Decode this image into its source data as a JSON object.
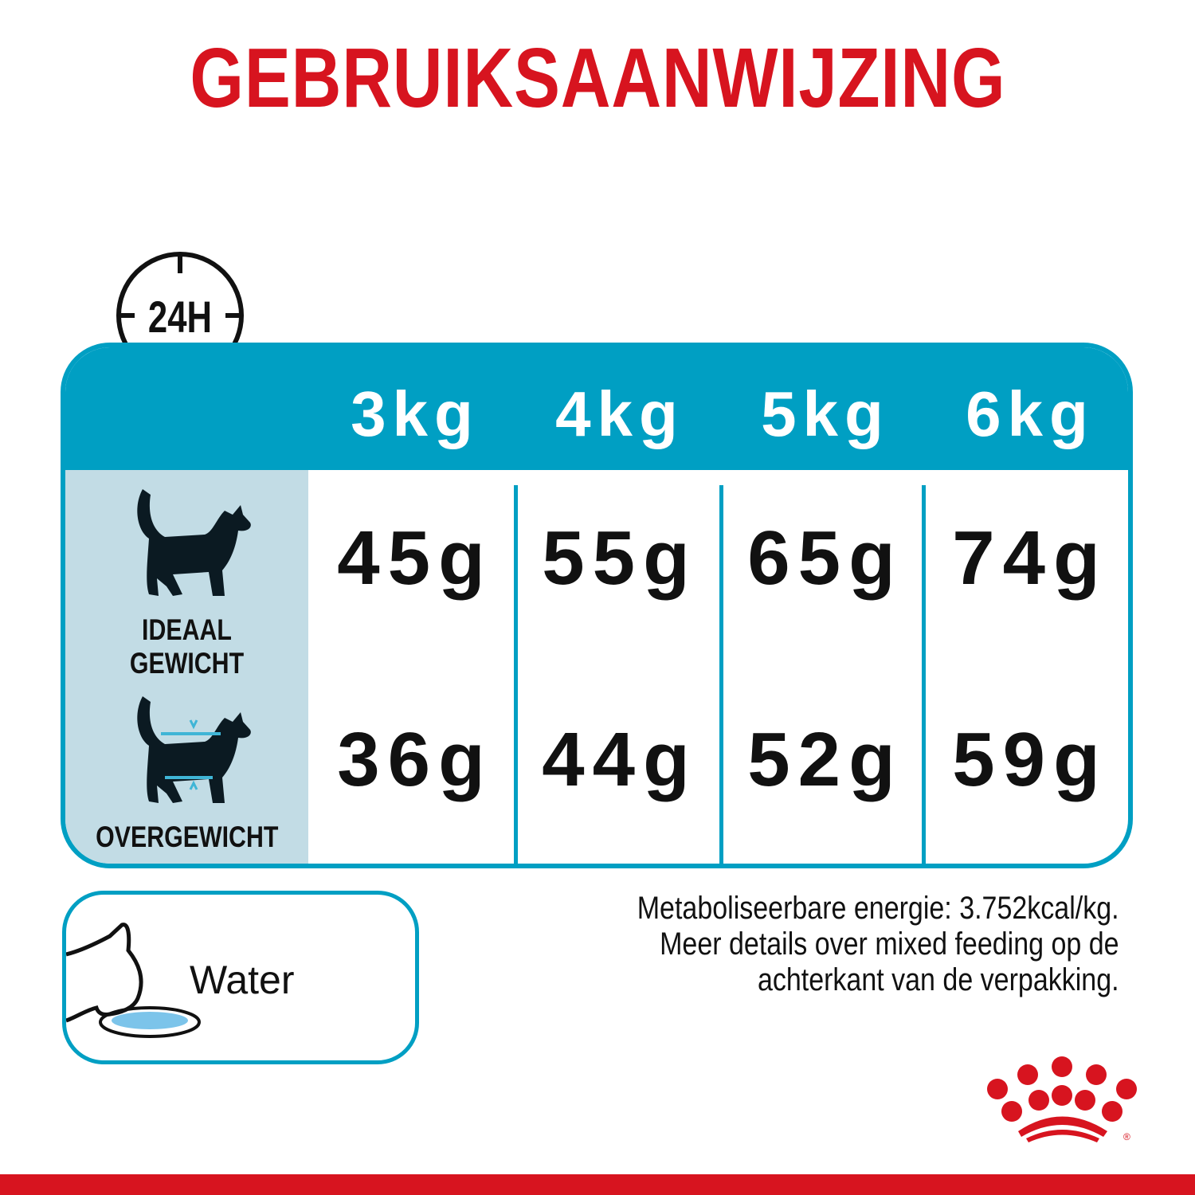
{
  "title": "GEBRUIKSAANWIJZING",
  "clock_label": "24H",
  "colors": {
    "brand_red": "#d7141f",
    "teal": "#009fc3",
    "light_blue": "#c2dce5"
  },
  "table": {
    "columns": [
      "3kg",
      "4kg",
      "5kg",
      "6kg"
    ],
    "rows": [
      {
        "label": "IDEAAL GEWICHT",
        "icon": "cat-icon",
        "values": [
          "45g",
          "55g",
          "65g",
          "74g"
        ]
      },
      {
        "label": "OVERGEWICHT",
        "icon": "overweight-cat-icon",
        "values": [
          "36g",
          "44g",
          "52g",
          "59g"
        ]
      }
    ]
  },
  "water": {
    "label": "Water",
    "icon": "cat-drinking-water-icon"
  },
  "notes": [
    "Metaboliseerbare energie: 3.752kcal/kg.",
    "Meer details over mixed feeding op de",
    "achterkant van de verpakking."
  ],
  "logo": "royal-canin-crown-logo"
}
